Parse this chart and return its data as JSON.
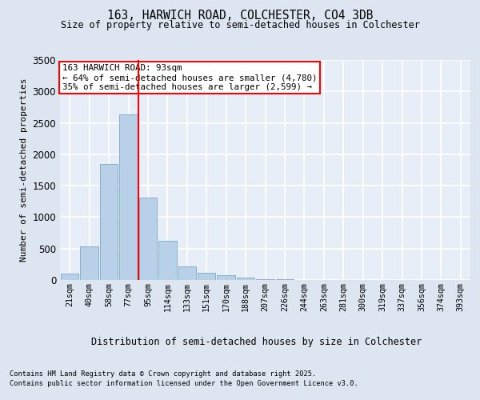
{
  "title1": "163, HARWICH ROAD, COLCHESTER, CO4 3DB",
  "title2": "Size of property relative to semi-detached houses in Colchester",
  "xlabel": "Distribution of semi-detached houses by size in Colchester",
  "ylabel": "Number of semi-detached properties",
  "categories": [
    "21sqm",
    "40sqm",
    "58sqm",
    "77sqm",
    "95sqm",
    "114sqm",
    "133sqm",
    "151sqm",
    "170sqm",
    "188sqm",
    "207sqm",
    "226sqm",
    "244sqm",
    "263sqm",
    "281sqm",
    "300sqm",
    "319sqm",
    "337sqm",
    "356sqm",
    "374sqm",
    "393sqm"
  ],
  "values": [
    100,
    540,
    1850,
    2640,
    1310,
    630,
    220,
    120,
    75,
    40,
    15,
    8,
    3,
    1,
    0,
    0,
    0,
    0,
    0,
    0,
    0
  ],
  "bar_color": "#b8d0e8",
  "bar_edge_color": "#7aaac8",
  "vline_x_index": 4,
  "vline_color": "red",
  "annotation_title": "163 HARWICH ROAD: 93sqm",
  "annotation_line1": "← 64% of semi-detached houses are smaller (4,780)",
  "annotation_line2": "35% of semi-detached houses are larger (2,599) →",
  "ylim": [
    0,
    3500
  ],
  "yticks": [
    0,
    500,
    1000,
    1500,
    2000,
    2500,
    3000,
    3500
  ],
  "background_color": "#dde5f0",
  "plot_bg_color": "#e8eef8",
  "grid_color": "#ffffff",
  "footnote1": "Contains HM Land Registry data © Crown copyright and database right 2025.",
  "footnote2": "Contains public sector information licensed under the Open Government Licence v3.0."
}
